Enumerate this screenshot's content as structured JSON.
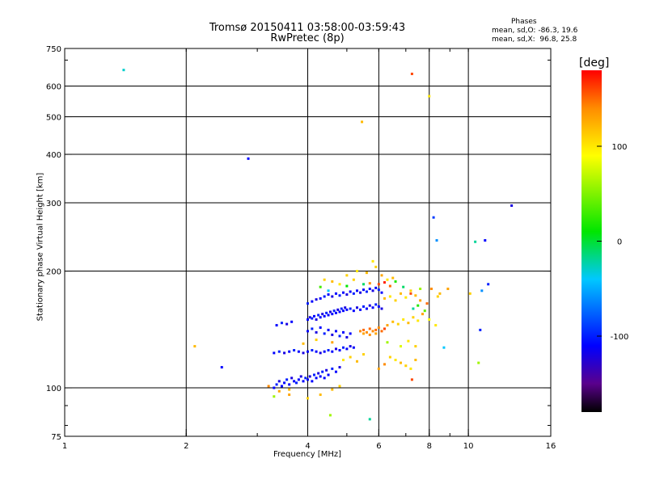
{
  "title": {
    "line1": "Tromsø 20150411 03:58:00-03:59:43",
    "line2": "RwPretec (8p)"
  },
  "stats": {
    "header": "Phases",
    "o_mode": "mean, sd,O: -86.3, 19.6",
    "x_mode": "mean, sd,X:  96.8, 25.8"
  },
  "colorbar": {
    "unit": "[deg]",
    "ticks": [
      {
        "value": 100,
        "label": "100"
      },
      {
        "value": 0,
        "label": "0"
      },
      {
        "value": -100,
        "label": "-100"
      }
    ],
    "range": [
      -180,
      180
    ]
  },
  "chart_data": {
    "type": "scatter",
    "xlabel": "Frequency [MHz]",
    "ylabel": "Stationary phase Virtual Height [km]",
    "xscale": "log",
    "yscale": "log",
    "xlim": [
      1,
      16
    ],
    "ylim": [
      75,
      750
    ],
    "xticks": [
      {
        "value": 1,
        "label": "1"
      },
      {
        "value": 2,
        "label": "2"
      },
      {
        "value": 4,
        "label": "4"
      },
      {
        "value": 6,
        "label": "6"
      },
      {
        "value": 8,
        "label": "8"
      },
      {
        "value": 10,
        "label": "10"
      },
      {
        "value": 16,
        "label": "16"
      }
    ],
    "yticks": [
      {
        "value": 75,
        "label": "75"
      },
      {
        "value": 100,
        "label": "100"
      },
      {
        "value": 200,
        "label": "200"
      },
      {
        "value": 300,
        "label": "300"
      },
      {
        "value": 400,
        "label": "400"
      },
      {
        "value": 500,
        "label": "500"
      },
      {
        "value": 600,
        "label": "600"
      },
      {
        "value": 750,
        "label": "750"
      }
    ],
    "grid_x": [
      2,
      4,
      6,
      8,
      10
    ],
    "grid_y": [
      100,
      200,
      300,
      400,
      500,
      600
    ],
    "grid": true,
    "colorbar_label": "[deg]",
    "points": [
      [
        1.4,
        660,
        -30
      ],
      [
        2.85,
        390,
        -110
      ],
      [
        5.45,
        485,
        120
      ],
      [
        7.25,
        645,
        160
      ],
      [
        8.0,
        565,
        100
      ],
      [
        8.2,
        275,
        -90
      ],
      [
        8.35,
        240,
        -60
      ],
      [
        10.4,
        238,
        -20
      ],
      [
        11.0,
        240,
        -110
      ],
      [
        12.8,
        295,
        -120
      ],
      [
        2.1,
        128,
        120
      ],
      [
        2.45,
        113,
        -110
      ],
      [
        5.7,
        83,
        -20
      ],
      [
        4.55,
        85,
        60
      ],
      [
        7.25,
        105,
        160
      ],
      [
        8.7,
        127,
        -40
      ],
      [
        10.8,
        178,
        -60
      ],
      [
        11.2,
        185,
        -100
      ],
      [
        10.7,
        141,
        -100
      ],
      [
        10.6,
        116,
        60
      ],
      [
        10.1,
        175,
        110
      ],
      [
        8.9,
        180,
        130
      ],
      [
        8.4,
        172,
        110
      ],
      [
        3.3,
        100,
        -110
      ],
      [
        3.35,
        102,
        -100
      ],
      [
        3.4,
        104,
        -120
      ],
      [
        3.45,
        101,
        -110
      ],
      [
        3.5,
        103,
        -110
      ],
      [
        3.55,
        105,
        -100
      ],
      [
        3.6,
        102,
        -110
      ],
      [
        3.65,
        106,
        -120
      ],
      [
        3.7,
        104,
        -110
      ],
      [
        3.75,
        103,
        -100
      ],
      [
        3.8,
        105,
        -110
      ],
      [
        3.85,
        107,
        -120
      ],
      [
        3.9,
        104,
        -110
      ],
      [
        3.95,
        106,
        -100
      ],
      [
        4.0,
        105,
        -110
      ],
      [
        4.05,
        107,
        -120
      ],
      [
        4.1,
        104,
        -110
      ],
      [
        4.15,
        108,
        -100
      ],
      [
        4.2,
        106,
        -110
      ],
      [
        4.25,
        109,
        -120
      ],
      [
        4.3,
        107,
        -110
      ],
      [
        4.35,
        110,
        -100
      ],
      [
        4.4,
        106,
        -110
      ],
      [
        4.45,
        111,
        -120
      ],
      [
        4.5,
        108,
        -110
      ],
      [
        4.6,
        112,
        -100
      ],
      [
        4.7,
        110,
        -110
      ],
      [
        4.8,
        113,
        -120
      ],
      [
        3.2,
        101,
        140
      ],
      [
        3.4,
        98,
        130
      ],
      [
        3.6,
        99,
        120
      ],
      [
        4.6,
        99,
        120
      ],
      [
        4.8,
        101,
        110
      ],
      [
        3.3,
        123,
        -110
      ],
      [
        3.4,
        124,
        -100
      ],
      [
        3.5,
        123,
        -120
      ],
      [
        3.6,
        124,
        -110
      ],
      [
        3.7,
        125,
        -100
      ],
      [
        3.8,
        124,
        -110
      ],
      [
        3.9,
        123,
        -120
      ],
      [
        4.0,
        124,
        -110
      ],
      [
        4.1,
        125,
        -100
      ],
      [
        4.2,
        124,
        -110
      ],
      [
        4.3,
        123,
        -120
      ],
      [
        4.4,
        124,
        -110
      ],
      [
        4.5,
        125,
        -100
      ],
      [
        4.6,
        124,
        -110
      ],
      [
        4.7,
        126,
        -120
      ],
      [
        4.8,
        125,
        -110
      ],
      [
        4.9,
        127,
        -100
      ],
      [
        5.0,
        126,
        -110
      ],
      [
        5.1,
        128,
        -120
      ],
      [
        5.2,
        127,
        -110
      ],
      [
        3.35,
        145,
        -110
      ],
      [
        3.45,
        147,
        -100
      ],
      [
        3.55,
        146,
        -120
      ],
      [
        3.65,
        148,
        -110
      ],
      [
        4.0,
        150,
        -110
      ],
      [
        4.05,
        152,
        -120
      ],
      [
        4.1,
        151,
        -100
      ],
      [
        4.15,
        153,
        -110
      ],
      [
        4.2,
        150,
        -120
      ],
      [
        4.25,
        154,
        -100
      ],
      [
        4.3,
        152,
        -110
      ],
      [
        4.35,
        155,
        -120
      ],
      [
        4.4,
        153,
        -110
      ],
      [
        4.45,
        156,
        -100
      ],
      [
        4.5,
        154,
        -110
      ],
      [
        4.55,
        157,
        -120
      ],
      [
        4.6,
        155,
        -110
      ],
      [
        4.65,
        158,
        -100
      ],
      [
        4.7,
        156,
        -110
      ],
      [
        4.75,
        159,
        -120
      ],
      [
        4.8,
        157,
        -110
      ],
      [
        4.85,
        160,
        -100
      ],
      [
        4.9,
        158,
        -110
      ],
      [
        4.95,
        161,
        -120
      ],
      [
        5.0,
        159,
        -110
      ],
      [
        5.1,
        160,
        -100
      ],
      [
        5.2,
        158,
        -110
      ],
      [
        5.3,
        161,
        -120
      ],
      [
        5.4,
        159,
        -110
      ],
      [
        5.5,
        162,
        -100
      ],
      [
        5.6,
        160,
        -110
      ],
      [
        5.7,
        163,
        -120
      ],
      [
        5.8,
        161,
        -110
      ],
      [
        5.9,
        164,
        -100
      ],
      [
        6.0,
        162,
        -110
      ],
      [
        6.1,
        160,
        -120
      ],
      [
        4.0,
        165,
        -100
      ],
      [
        4.1,
        167,
        -110
      ],
      [
        4.2,
        169,
        -120
      ],
      [
        4.3,
        170,
        -110
      ],
      [
        4.4,
        172,
        -100
      ],
      [
        4.5,
        174,
        -110
      ],
      [
        4.6,
        172,
        -120
      ],
      [
        4.7,
        175,
        -110
      ],
      [
        4.8,
        173,
        -100
      ],
      [
        4.9,
        176,
        -110
      ],
      [
        5.0,
        174,
        -120
      ],
      [
        5.1,
        177,
        -110
      ],
      [
        5.2,
        175,
        -100
      ],
      [
        5.3,
        178,
        -110
      ],
      [
        5.4,
        176,
        -120
      ],
      [
        5.5,
        179,
        -110
      ],
      [
        5.6,
        177,
        -100
      ],
      [
        5.7,
        180,
        -110
      ],
      [
        5.8,
        178,
        -120
      ],
      [
        5.9,
        181,
        -110
      ],
      [
        6.0,
        179,
        -100
      ],
      [
        6.1,
        176,
        -110
      ],
      [
        4.0,
        140,
        -110
      ],
      [
        4.1,
        142,
        -100
      ],
      [
        4.2,
        139,
        -120
      ],
      [
        4.3,
        143,
        -110
      ],
      [
        4.4,
        138,
        -100
      ],
      [
        4.5,
        141,
        -110
      ],
      [
        4.6,
        137,
        -120
      ],
      [
        4.7,
        140,
        -110
      ],
      [
        4.8,
        136,
        -100
      ],
      [
        4.9,
        139,
        -110
      ],
      [
        5.0,
        135,
        -120
      ],
      [
        5.1,
        138,
        -110
      ],
      [
        5.4,
        140,
        140
      ],
      [
        5.5,
        141,
        150
      ],
      [
        5.6,
        139,
        140
      ],
      [
        5.7,
        142,
        150
      ],
      [
        5.8,
        140,
        140
      ],
      [
        5.9,
        141,
        150
      ],
      [
        6.0,
        143,
        140
      ],
      [
        6.1,
        140,
        150
      ],
      [
        5.5,
        138,
        130
      ],
      [
        5.7,
        137,
        140
      ],
      [
        5.9,
        138,
        130
      ],
      [
        6.2,
        142,
        160
      ],
      [
        6.3,
        145,
        130
      ],
      [
        6.5,
        148,
        120
      ],
      [
        6.7,
        146,
        110
      ],
      [
        6.9,
        150,
        100
      ],
      [
        7.1,
        147,
        120
      ],
      [
        7.3,
        152,
        110
      ],
      [
        7.5,
        149,
        100
      ],
      [
        7.7,
        155,
        130
      ],
      [
        6.2,
        170,
        120
      ],
      [
        6.4,
        172,
        100
      ],
      [
        6.6,
        168,
        110
      ],
      [
        6.8,
        175,
        120
      ],
      [
        7.0,
        171,
        100
      ],
      [
        7.2,
        178,
        110
      ],
      [
        7.4,
        173,
        120
      ],
      [
        7.6,
        168,
        130
      ],
      [
        5.0,
        195,
        110
      ],
      [
        5.3,
        200,
        100
      ],
      [
        5.6,
        198,
        120
      ],
      [
        5.9,
        205,
        110
      ],
      [
        6.1,
        195,
        130
      ],
      [
        6.3,
        190,
        100
      ],
      [
        6.5,
        192,
        120
      ],
      [
        5.8,
        212,
        100
      ],
      [
        4.4,
        190,
        110
      ],
      [
        4.6,
        188,
        120
      ],
      [
        4.8,
        185,
        100
      ],
      [
        5.2,
        190,
        110
      ],
      [
        6.0,
        185,
        160
      ],
      [
        6.2,
        187,
        170
      ],
      [
        6.4,
        183,
        150
      ],
      [
        5.7,
        186,
        140
      ],
      [
        6.4,
        120,
        110
      ],
      [
        6.6,
        118,
        100
      ],
      [
        6.8,
        116,
        120
      ],
      [
        7.0,
        114,
        110
      ],
      [
        7.2,
        112,
        100
      ],
      [
        7.4,
        118,
        120
      ],
      [
        6.2,
        115,
        140
      ],
      [
        6.0,
        112,
        130
      ],
      [
        7.3,
        160,
        -20
      ],
      [
        7.5,
        163,
        20
      ],
      [
        7.8,
        158,
        40
      ],
      [
        8.0,
        150,
        90
      ],
      [
        8.3,
        145,
        100
      ],
      [
        8.1,
        180,
        140
      ],
      [
        8.5,
        175,
        120
      ],
      [
        7.6,
        180,
        60
      ],
      [
        7.9,
        165,
        150
      ],
      [
        7.2,
        175,
        160
      ],
      [
        6.9,
        182,
        -10
      ],
      [
        6.6,
        188,
        20
      ],
      [
        4.3,
        182,
        30
      ],
      [
        4.5,
        178,
        -40
      ],
      [
        5.0,
        183,
        10
      ],
      [
        5.5,
        185,
        -10
      ],
      [
        6.3,
        131,
        60
      ],
      [
        6.8,
        128,
        80
      ],
      [
        7.1,
        132,
        100
      ],
      [
        7.4,
        128,
        110
      ],
      [
        3.3,
        95,
        60
      ],
      [
        3.6,
        96,
        130
      ],
      [
        4.0,
        94,
        110
      ],
      [
        4.3,
        96,
        120
      ],
      [
        4.9,
        118,
        100
      ],
      [
        5.1,
        120,
        110
      ],
      [
        5.3,
        117,
        120
      ],
      [
        5.5,
        122,
        110
      ],
      [
        3.9,
        130,
        120
      ],
      [
        4.2,
        133,
        110
      ],
      [
        4.6,
        131,
        130
      ]
    ]
  }
}
